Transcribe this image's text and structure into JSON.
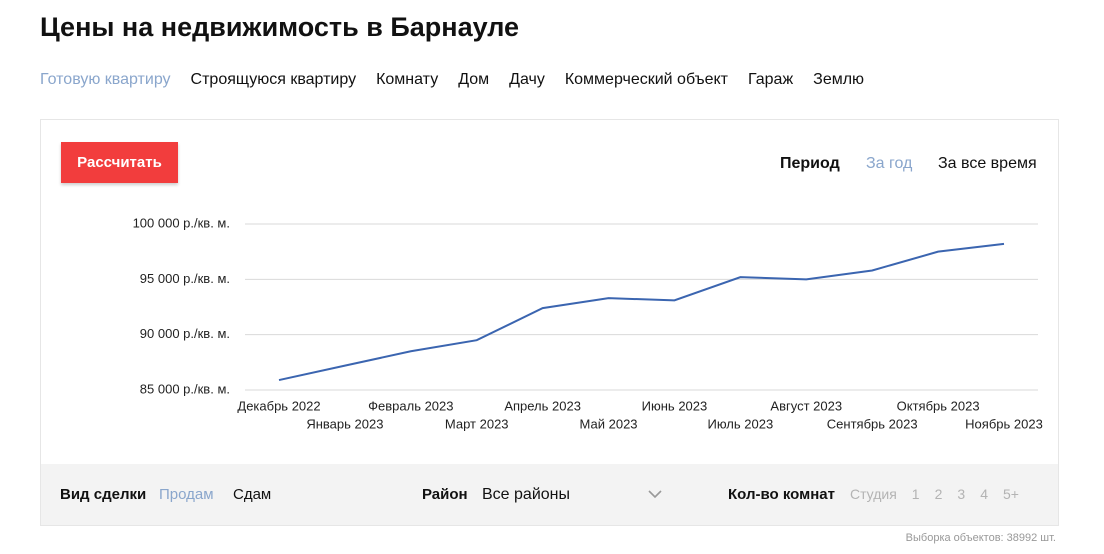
{
  "header": {
    "title": "Цены на недвижимость в Барнауле"
  },
  "tabs": [
    "Готовую квартиру",
    "Строящуюся квартиру",
    "Комнату",
    "Дом",
    "Дачу",
    "Коммерческий объект",
    "Гараж",
    "Землю"
  ],
  "calculate_button": "Рассчитать",
  "period": {
    "label": "Период",
    "options": [
      "За год",
      "За все время"
    ]
  },
  "chart_data": {
    "type": "line",
    "categories": [
      "Декабрь 2022",
      "Январь 2023",
      "Февраль 2023",
      "Март 2023",
      "Апрель 2023",
      "Май 2023",
      "Июнь 2023",
      "Июль 2023",
      "Август 2023",
      "Сентябрь 2023",
      "Октябрь 2023",
      "Ноябрь 2023"
    ],
    "values": [
      85900,
      87200,
      88500,
      89500,
      92400,
      93300,
      93100,
      95200,
      95000,
      95800,
      97500,
      98200
    ],
    "color": "#3b65b0",
    "ylim": [
      85000,
      100000
    ],
    "yticks": [
      {
        "value": 85000,
        "label": "85 000 р./кв. м."
      },
      {
        "value": 90000,
        "label": "90 000 р./кв. м."
      },
      {
        "value": 95000,
        "label": "95 000 р./кв. м."
      },
      {
        "value": 100000,
        "label": "100 000 р./кв. м."
      }
    ],
    "grid": true
  },
  "filters": {
    "deal_label": "Вид сделки",
    "deal_options": [
      "Продам",
      "Сдам"
    ],
    "district_label": "Район",
    "district_value": "Все районы",
    "rooms_label": "Кол-во комнат",
    "rooms_options": [
      "Студия",
      "1",
      "2",
      "3",
      "4",
      "5+"
    ]
  },
  "footer": {
    "sample": "Выборка объектов: 38992 шт."
  }
}
